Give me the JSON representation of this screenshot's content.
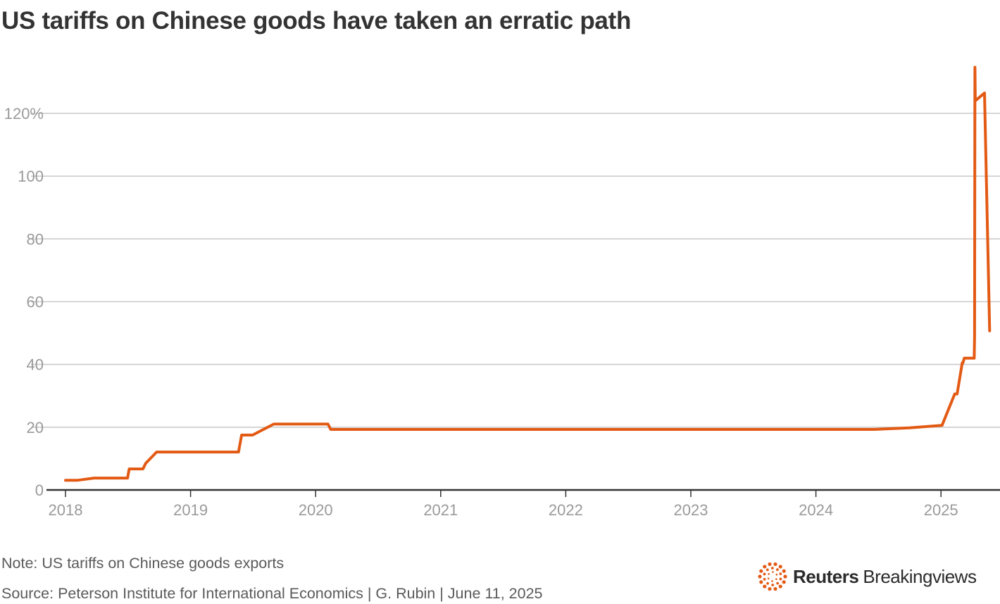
{
  "title": "US tariffs on Chinese goods have taken an erratic path",
  "note": "Note: US tariffs on Chinese goods exports",
  "source": "Source: Peterson Institute for International Economics | G. Rubin | June 11, 2025",
  "logo": {
    "brand": "Reuters",
    "product": "Breakingviews",
    "icon": "reuters-dot-ring-logo"
  },
  "colors": {
    "line": "#e35a14",
    "grid": "#c8c8c8",
    "axis": "#333333",
    "logo_accent": "#e35a14"
  },
  "chart_data": {
    "type": "line",
    "title": "US tariffs on Chinese goods have taken an erratic path",
    "xlabel": "",
    "ylabel": "",
    "ylim": [
      0,
      135
    ],
    "xlim": [
      "2018-01-01",
      "2025-06-01"
    ],
    "grid": true,
    "y_ticks": [
      {
        "value": 0,
        "label": "0"
      },
      {
        "value": 20,
        "label": "20"
      },
      {
        "value": 40,
        "label": "40"
      },
      {
        "value": 60,
        "label": "60"
      },
      {
        "value": 80,
        "label": "80"
      },
      {
        "value": 100,
        "label": "100"
      },
      {
        "value": 120,
        "label": "120%"
      }
    ],
    "x_ticks": [
      {
        "value": "2018-01-01",
        "label": "2018"
      },
      {
        "value": "2019-01-01",
        "label": "2019"
      },
      {
        "value": "2020-01-01",
        "label": "2020"
      },
      {
        "value": "2021-01-01",
        "label": "2021"
      },
      {
        "value": "2022-01-01",
        "label": "2022"
      },
      {
        "value": "2023-01-01",
        "label": "2023"
      },
      {
        "value": "2024-01-01",
        "label": "2024"
      },
      {
        "value": "2025-01-01",
        "label": "2025"
      }
    ],
    "series": [
      {
        "points": [
          [
            "2018-01-01",
            3.1
          ],
          [
            "2018-02-06",
            3.1
          ],
          [
            "2018-03-25",
            3.8
          ],
          [
            "2018-07-01",
            3.8
          ],
          [
            "2018-07-06",
            6.7
          ],
          [
            "2018-08-15",
            6.7
          ],
          [
            "2018-08-23",
            8.5
          ],
          [
            "2018-09-24",
            12.1
          ],
          [
            "2019-05-21",
            12.1
          ],
          [
            "2019-05-30",
            17.5
          ],
          [
            "2019-07-01",
            17.5
          ],
          [
            "2019-09-01",
            21.0
          ],
          [
            "2020-02-06",
            21.0
          ],
          [
            "2020-02-14",
            19.3
          ],
          [
            "2024-06-20",
            19.3
          ],
          [
            "2024-10-01",
            19.8
          ],
          [
            "2025-01-04",
            20.6
          ],
          [
            "2025-02-10",
            30.6
          ],
          [
            "2025-02-17",
            30.6
          ],
          [
            "2025-03-04",
            40.5
          ],
          [
            "2025-03-06",
            40.5
          ],
          [
            "2025-03-10",
            42.0
          ],
          [
            "2025-04-08",
            42.0
          ],
          [
            "2025-04-09",
            49.0
          ],
          [
            "2025-04-10",
            134.7
          ],
          [
            "2025-04-11",
            124.0
          ],
          [
            "2025-05-08",
            126.5
          ],
          [
            "2025-05-23",
            50.7
          ]
        ]
      }
    ]
  }
}
